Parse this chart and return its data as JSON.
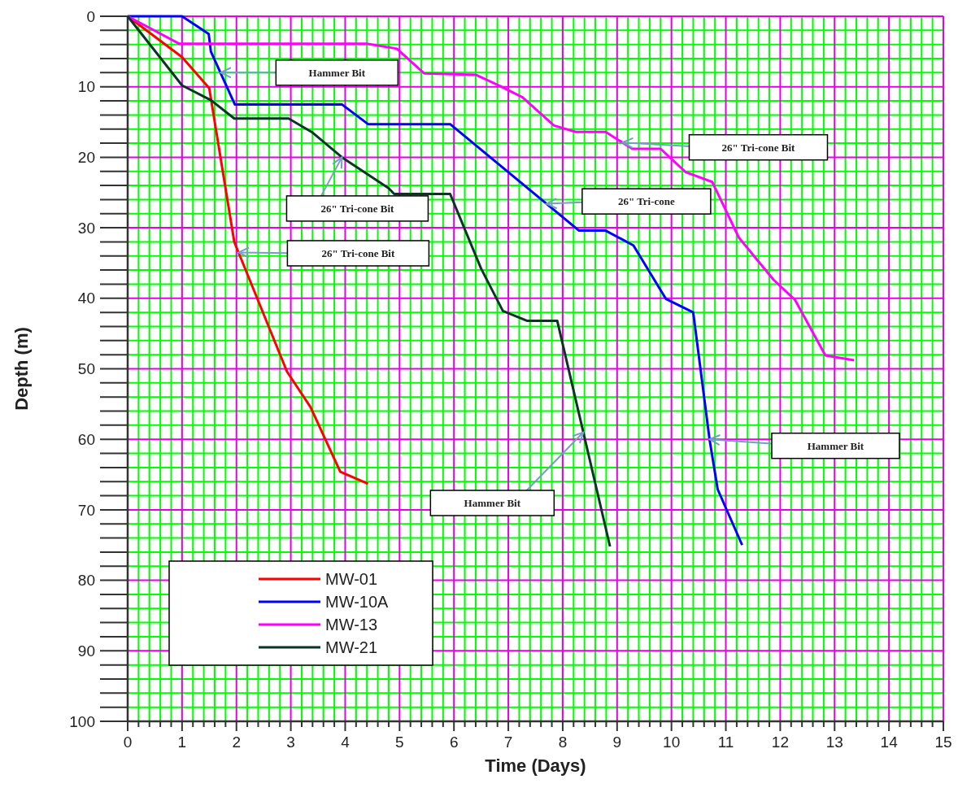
{
  "chart_data": {
    "type": "line",
    "xlabel": "Time (Days)",
    "ylabel": "Depth (m)",
    "xlim": [
      0,
      15
    ],
    "ylim": [
      100,
      0
    ],
    "xticks": [
      0,
      {
        "value": 0.2,
        "label": null
      },
      {
        "value": 0.4,
        "label": null
      },
      {
        "value": 0.6,
        "label": null
      },
      {
        "value": 0.8,
        "label": null
      },
      1,
      {
        "value": 1.2,
        "label": null
      },
      {
        "value": 1.4,
        "label": null
      },
      {
        "value": 1.6,
        "label": null
      },
      {
        "value": 1.8,
        "label": null
      },
      2,
      {
        "value": 2.2,
        "label": null
      },
      {
        "value": 2.4,
        "label": null
      },
      {
        "value": 2.6,
        "label": null
      },
      {
        "value": 2.8,
        "label": null
      },
      3,
      {
        "value": 3.2,
        "label": null
      },
      {
        "value": 3.4,
        "label": null
      },
      {
        "value": 3.6,
        "label": null
      },
      {
        "value": 3.8,
        "label": null
      },
      4,
      {
        "value": 4.2,
        "label": null
      },
      {
        "value": 4.4,
        "label": null
      },
      {
        "value": 4.6,
        "label": null
      },
      {
        "value": 4.8,
        "label": null
      },
      5,
      {
        "value": 5.2,
        "label": null
      },
      {
        "value": 5.4,
        "label": null
      },
      {
        "value": 5.6,
        "label": null
      },
      {
        "value": 5.8,
        "label": null
      },
      6,
      {
        "value": 6.2,
        "label": null
      },
      {
        "value": 6.4,
        "label": null
      },
      {
        "value": 6.6,
        "label": null
      },
      {
        "value": 6.8,
        "label": null
      },
      7,
      {
        "value": 7.2,
        "label": null
      },
      {
        "value": 7.4,
        "label": null
      },
      {
        "value": 7.6,
        "label": null
      },
      {
        "value": 7.8,
        "label": null
      },
      8,
      {
        "value": 8.2,
        "label": null
      },
      {
        "value": 8.4,
        "label": null
      },
      {
        "value": 8.6,
        "label": null
      },
      {
        "value": 8.8,
        "label": null
      },
      9,
      {
        "value": 9.2,
        "label": null
      },
      {
        "value": 9.4,
        "label": null
      },
      {
        "value": 9.6,
        "label": null
      },
      {
        "value": 9.8,
        "label": null
      },
      10,
      {
        "value": 10.2,
        "label": null
      },
      {
        "value": 10.4,
        "label": null
      },
      {
        "value": 10.6,
        "label": null
      },
      {
        "value": 10.8,
        "label": null
      },
      11,
      {
        "value": 11.2,
        "label": null
      },
      {
        "value": 11.4,
        "label": null
      },
      {
        "value": 11.6,
        "label": null
      },
      {
        "value": 11.8,
        "label": null
      },
      12,
      {
        "value": 12.2,
        "label": null
      },
      {
        "value": 12.4,
        "label": null
      },
      {
        "value": 12.6,
        "label": null
      },
      {
        "value": 12.8,
        "label": null
      },
      13,
      {
        "value": 13.2,
        "label": null
      },
      {
        "value": 13.4,
        "label": null
      },
      {
        "value": 13.6,
        "label": null
      },
      {
        "value": 13.8,
        "label": null
      },
      14,
      {
        "value": 14.2,
        "label": null
      },
      {
        "value": 14.4,
        "label": null
      },
      {
        "value": 14.6,
        "label": null
      },
      {
        "value": 14.8,
        "label": null
      },
      15
    ],
    "yticks": [
      0,
      {
        "value": 2,
        "label": null
      },
      {
        "value": 4,
        "label": null
      },
      {
        "value": 6,
        "label": null
      },
      {
        "value": 8,
        "label": null
      },
      10,
      {
        "value": 12,
        "label": null
      },
      {
        "value": 14,
        "label": null
      },
      {
        "value": 16,
        "label": null
      },
      {
        "value": 18,
        "label": null
      },
      20,
      {
        "value": 22,
        "label": null
      },
      {
        "value": 24,
        "label": null
      },
      {
        "value": 26,
        "label": null
      },
      {
        "value": 28,
        "label": null
      },
      30,
      {
        "value": 32,
        "label": null
      },
      {
        "value": 34,
        "label": null
      },
      {
        "value": 36,
        "label": null
      },
      {
        "value": 38,
        "label": null
      },
      40,
      {
        "value": 42,
        "label": null
      },
      {
        "value": 44,
        "label": null
      },
      {
        "value": 46,
        "label": null
      },
      {
        "value": 48,
        "label": null
      },
      50,
      {
        "value": 52,
        "label": null
      },
      {
        "value": 54,
        "label": null
      },
      {
        "value": 56,
        "label": null
      },
      {
        "value": 58,
        "label": null
      },
      60,
      {
        "value": 62,
        "label": null
      },
      {
        "value": 64,
        "label": null
      },
      {
        "value": 66,
        "label": null
      },
      {
        "value": 68,
        "label": null
      },
      70,
      {
        "value": 72,
        "label": null
      },
      {
        "value": 74,
        "label": null
      },
      {
        "value": 76,
        "label": null
      },
      {
        "value": 78,
        "label": null
      },
      80,
      {
        "value": 82,
        "label": null
      },
      {
        "value": 84,
        "label": null
      },
      {
        "value": 86,
        "label": null
      },
      {
        "value": 88,
        "label": null
      },
      90,
      {
        "value": 92,
        "label": null
      },
      {
        "value": 94,
        "label": null
      },
      {
        "value": 96,
        "label": null
      },
      {
        "value": 98,
        "label": null
      },
      100
    ],
    "grid": true,
    "legend": "bottom left",
    "marker": "none",
    "line_style": "solid",
    "series": [
      {
        "name": "MW-01",
        "color": "#ff0000",
        "x": [
          0,
          1,
          1.5,
          1.96,
          2.93,
          3.36,
          3.91,
          4.42
        ],
        "values": [
          0,
          5.8,
          10.2,
          32,
          50.4,
          55.4,
          64.6,
          66.3
        ]
      },
      {
        "name": "MW-10A",
        "color": "#0000ff",
        "x": [
          0,
          1,
          1.49,
          1.53,
          1.97,
          3.94,
          4.42,
          5.93,
          8.3,
          8.79,
          9.3,
          9.9,
          10.4,
          10.7,
          10.85,
          11.3
        ],
        "values": [
          0,
          0,
          2.5,
          5,
          12.5,
          12.5,
          15.3,
          15.3,
          30.4,
          30.4,
          32.5,
          40.1,
          42,
          60,
          67.1,
          75
        ]
      },
      {
        "name": "MW-13",
        "color": "#ff00ff",
        "x": [
          0,
          0.95,
          4.4,
          4.95,
          5.45,
          6.4,
          6.85,
          7.26,
          7.84,
          8.24,
          8.79,
          9.28,
          9.8,
          10.26,
          10.75,
          11.24,
          11.88,
          12.27,
          12.83,
          13.36
        ],
        "values": [
          0,
          3.9,
          3.9,
          4.6,
          8.1,
          8.3,
          9.9,
          11.5,
          15.5,
          16.4,
          16.4,
          18.8,
          18.8,
          22.1,
          23.5,
          31.4,
          37.4,
          40.2,
          48.1,
          48.8
        ]
      },
      {
        "name": "MW-21",
        "color": "#0b3326",
        "x": [
          0,
          1,
          1.53,
          1.96,
          2.96,
          3.4,
          3.94,
          4.8,
          4.9,
          5.93,
          6.5,
          6.9,
          7.35,
          7.9,
          8.87
        ],
        "values": [
          0,
          9.8,
          11.9,
          14.5,
          14.5,
          16.5,
          20,
          24.4,
          25.2,
          25.2,
          35.8,
          41.8,
          43.2,
          43.2,
          75.2
        ]
      }
    ],
    "annotations": [
      {
        "text": "Hammer Bit",
        "x": 1.71,
        "y": 8
      },
      {
        "text": "26\" Tri-cone Bit",
        "x": 3.94,
        "y": 20
      },
      {
        "text": "26\" Tri-cone Bit",
        "x": 2.04,
        "y": 33.5
      },
      {
        "text": "26\" Tri-cone Bit",
        "x": 9.1,
        "y": 17.9
      },
      {
        "text": "26\" Tri-cone",
        "x": 7.7,
        "y": 26.6
      },
      {
        "text": "Hammer Bit",
        "x": 10.7,
        "y": 60
      },
      {
        "text": "Hammer Bit",
        "x": 8.38,
        "y": 59
      }
    ]
  }
}
